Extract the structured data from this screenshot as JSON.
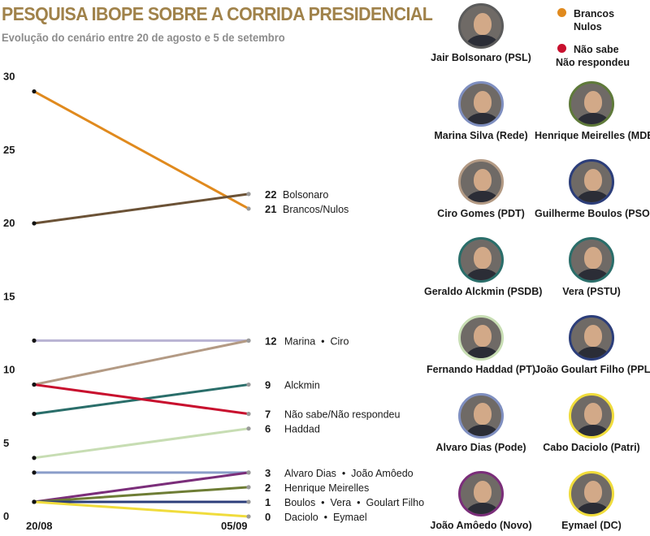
{
  "header": {
    "title": "PESQUISA IBOPE SOBRE A CORRIDA PRESIDENCIAL",
    "subtitle": "Evolução do cenário entre 20 de agosto e 5 de setembro"
  },
  "legend": [
    {
      "line1": "Brancos",
      "line2": "Nulos",
      "color": "#e08a1e"
    },
    {
      "line1": "Não sabe",
      "line2": "Não respondeu",
      "color": "#c8102e"
    }
  ],
  "candidates": [
    {
      "name": "Jair Bolsonaro (PSL)",
      "ring": "#5b5b5b"
    },
    {
      "name": "Marina Silva (Rede)",
      "ring": "#7f8fc0"
    },
    {
      "name": "Henrique Meirelles (MDB)",
      "ring": "#5f7a3a"
    },
    {
      "name": "Ciro Gomes (PDT)",
      "ring": "#b39a84"
    },
    {
      "name": "Guilherme Boulos (PSOL)",
      "ring": "#2c3e7a"
    },
    {
      "name": "Geraldo Alckmin (PSDB)",
      "ring": "#2a6e6a"
    },
    {
      "name": "Vera (PSTU)",
      "ring": "#2a6e6a"
    },
    {
      "name": "Fernando Haddad (PT)",
      "ring": "#c7ddb3"
    },
    {
      "name": "João Goulart Filho (PPL)",
      "ring": "#2c3e7a"
    },
    {
      "name": "Alvaro Dias (Pode)",
      "ring": "#7f8fc0"
    },
    {
      "name": "Cabo Daciolo (Patri)",
      "ring": "#f0dc3c"
    },
    {
      "name": "João Amôedo (Novo)",
      "ring": "#7b2e7a"
    },
    {
      "name": "Eymael (DC)",
      "ring": "#f0dc3c"
    }
  ],
  "chart_data": {
    "type": "line",
    "title": "PESQUISA IBOPE SOBRE A CORRIDA PRESIDENCIAL",
    "x": [
      "20/08",
      "05/09"
    ],
    "ylim": [
      0,
      30
    ],
    "yticks": [
      0,
      5,
      10,
      15,
      20,
      25,
      30
    ],
    "series": [
      {
        "name": "Brancos/Nulos",
        "values": [
          29,
          21
        ],
        "color": "#e08a1e"
      },
      {
        "name": "Bolsonaro",
        "values": [
          20,
          22
        ],
        "color": "#6b5236"
      },
      {
        "name": "Marina",
        "values": [
          12,
          12
        ],
        "color": "#b8b3d3"
      },
      {
        "name": "Ciro",
        "values": [
          9,
          12
        ],
        "color": "#b39a84"
      },
      {
        "name": "Alckmin",
        "values": [
          7,
          9
        ],
        "color": "#2a6e6a"
      },
      {
        "name": "Não sabe/Não respondeu",
        "values": [
          9,
          7
        ],
        "color": "#c8102e"
      },
      {
        "name": "Haddad",
        "values": [
          4,
          6
        ],
        "color": "#c7ddb3"
      },
      {
        "name": "Alvaro Dias",
        "values": [
          3,
          3
        ],
        "color": "#8a9dc9"
      },
      {
        "name": "João Amôedo",
        "values": [
          1,
          3
        ],
        "color": "#7b2e7a"
      },
      {
        "name": "Henrique Meirelles",
        "values": [
          1,
          2
        ],
        "color": "#6e7d35"
      },
      {
        "name": "Boulos",
        "values": [
          1,
          1
        ],
        "color": "#2c3e7a"
      },
      {
        "name": "Daciolo",
        "values": [
          1,
          0
        ],
        "color": "#f0dc3c"
      }
    ],
    "end_labels": [
      {
        "value": 22,
        "value_text": "22",
        "text": "Bolsonaro"
      },
      {
        "value": 21,
        "value_text": "21",
        "text": "Brancos/Nulos"
      },
      {
        "value": 12,
        "value_text": "12",
        "text": "Marina  •  Ciro"
      },
      {
        "value": 9,
        "value_text": "9",
        "text": "Alckmin"
      },
      {
        "value": 7,
        "value_text": "7",
        "text": "Não sabe/Não respondeu"
      },
      {
        "value": 6,
        "value_text": "6",
        "text": "Haddad"
      },
      {
        "value": 3,
        "value_text": "3",
        "text": "Alvaro Dias  •  João Amôedo"
      },
      {
        "value": 2,
        "value_text": "2",
        "text": "Henrique Meirelles"
      },
      {
        "value": 1,
        "value_text": "1",
        "text": "Boulos  •  Vera  •  Goulart Filho"
      },
      {
        "value": 0,
        "value_text": "0",
        "text": "Daciolo  •  Eymael"
      }
    ]
  }
}
